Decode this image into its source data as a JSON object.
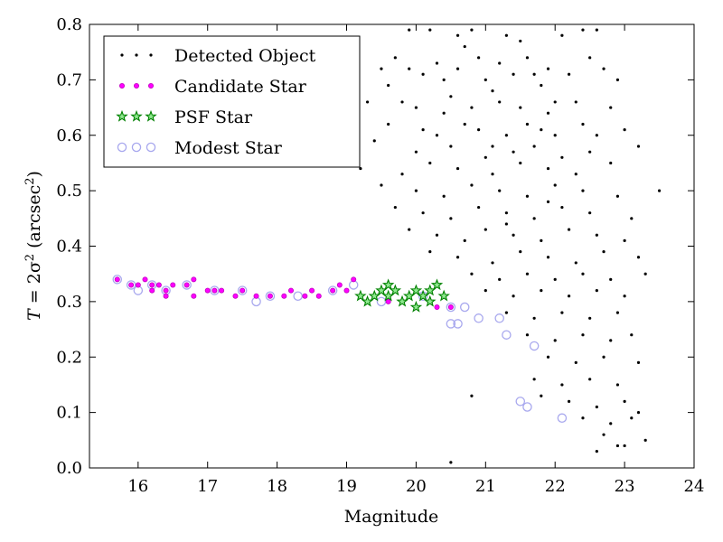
{
  "chart_data": {
    "type": "scatter",
    "xlabel": "Magnitude",
    "ylabel_parts": {
      "prefix": "T",
      "eq": " = 2σ",
      "sup": "2",
      "paren_open": " (arcsec",
      "sup2": "2",
      "paren_close": ")"
    },
    "xlim": [
      15.3,
      24.0
    ],
    "ylim": [
      0.0,
      0.8
    ],
    "xticks": [
      "16",
      "17",
      "18",
      "19",
      "20",
      "21",
      "22",
      "23",
      "24"
    ],
    "yticks": [
      "0.0",
      "0.1",
      "0.2",
      "0.3",
      "0.4",
      "0.5",
      "0.6",
      "0.7",
      "0.8"
    ],
    "grid": false,
    "legend_position": "top-left",
    "legend": [
      {
        "label": "Detected Object",
        "marker": "dot",
        "color": "#000000"
      },
      {
        "label": "Candidate Star",
        "marker": "small-circle",
        "color": "#ff00ff"
      },
      {
        "label": "PSF Star",
        "marker": "star",
        "color": "#00a000"
      },
      {
        "label": "Modest Star",
        "marker": "open-circle",
        "color": "#b0b0f0"
      }
    ],
    "series": [
      {
        "name": "Detected Object",
        "points": [
          [
            19.9,
            0.79
          ],
          [
            20.2,
            0.79
          ],
          [
            20.6,
            0.78
          ],
          [
            20.7,
            0.76
          ],
          [
            20.8,
            0.79
          ],
          [
            21.3,
            0.78
          ],
          [
            21.5,
            0.77
          ],
          [
            22.1,
            0.78
          ],
          [
            22.4,
            0.79
          ],
          [
            22.6,
            0.79
          ],
          [
            19.5,
            0.72
          ],
          [
            19.7,
            0.74
          ],
          [
            19.9,
            0.72
          ],
          [
            20.1,
            0.71
          ],
          [
            20.3,
            0.73
          ],
          [
            20.6,
            0.72
          ],
          [
            20.9,
            0.74
          ],
          [
            21.0,
            0.7
          ],
          [
            21.2,
            0.73
          ],
          [
            21.4,
            0.71
          ],
          [
            21.6,
            0.74
          ],
          [
            21.7,
            0.71
          ],
          [
            21.9,
            0.72
          ],
          [
            22.2,
            0.71
          ],
          [
            22.5,
            0.74
          ],
          [
            22.7,
            0.72
          ],
          [
            22.9,
            0.7
          ],
          [
            21.8,
            0.69
          ],
          [
            21.1,
            0.68
          ],
          [
            20.5,
            0.67
          ],
          [
            19.3,
            0.66
          ],
          [
            19.8,
            0.66
          ],
          [
            20.0,
            0.65
          ],
          [
            20.4,
            0.64
          ],
          [
            20.8,
            0.65
          ],
          [
            21.2,
            0.66
          ],
          [
            21.5,
            0.65
          ],
          [
            21.9,
            0.64
          ],
          [
            22.3,
            0.66
          ],
          [
            22.8,
            0.65
          ],
          [
            19.6,
            0.62
          ],
          [
            20.1,
            0.61
          ],
          [
            20.3,
            0.6
          ],
          [
            20.7,
            0.62
          ],
          [
            20.9,
            0.61
          ],
          [
            21.3,
            0.6
          ],
          [
            21.6,
            0.62
          ],
          [
            21.8,
            0.61
          ],
          [
            22.0,
            0.6
          ],
          [
            22.4,
            0.62
          ],
          [
            22.6,
            0.6
          ],
          [
            23.0,
            0.61
          ],
          [
            19.0,
            0.58
          ],
          [
            19.4,
            0.59
          ],
          [
            20.0,
            0.57
          ],
          [
            20.5,
            0.58
          ],
          [
            21.0,
            0.56
          ],
          [
            21.4,
            0.57
          ],
          [
            21.7,
            0.58
          ],
          [
            22.1,
            0.56
          ],
          [
            22.5,
            0.57
          ],
          [
            23.2,
            0.58
          ],
          [
            18.5,
            0.55
          ],
          [
            19.2,
            0.54
          ],
          [
            19.8,
            0.53
          ],
          [
            20.2,
            0.55
          ],
          [
            20.6,
            0.54
          ],
          [
            21.1,
            0.53
          ],
          [
            21.5,
            0.55
          ],
          [
            21.9,
            0.54
          ],
          [
            22.3,
            0.53
          ],
          [
            22.8,
            0.55
          ],
          [
            19.5,
            0.51
          ],
          [
            20.0,
            0.5
          ],
          [
            20.4,
            0.49
          ],
          [
            20.8,
            0.51
          ],
          [
            21.2,
            0.5
          ],
          [
            21.6,
            0.49
          ],
          [
            22.0,
            0.51
          ],
          [
            22.4,
            0.5
          ],
          [
            22.9,
            0.49
          ],
          [
            23.5,
            0.5
          ],
          [
            19.7,
            0.47
          ],
          [
            20.1,
            0.46
          ],
          [
            20.5,
            0.45
          ],
          [
            20.9,
            0.47
          ],
          [
            21.3,
            0.46
          ],
          [
            21.7,
            0.45
          ],
          [
            22.1,
            0.47
          ],
          [
            22.5,
            0.46
          ],
          [
            23.1,
            0.45
          ],
          [
            19.9,
            0.43
          ],
          [
            20.3,
            0.42
          ],
          [
            20.7,
            0.41
          ],
          [
            21.0,
            0.43
          ],
          [
            21.4,
            0.42
          ],
          [
            21.8,
            0.41
          ],
          [
            22.2,
            0.43
          ],
          [
            22.6,
            0.42
          ],
          [
            23.0,
            0.41
          ],
          [
            20.2,
            0.39
          ],
          [
            20.6,
            0.38
          ],
          [
            21.1,
            0.37
          ],
          [
            21.5,
            0.39
          ],
          [
            21.9,
            0.38
          ],
          [
            22.3,
            0.37
          ],
          [
            22.7,
            0.39
          ],
          [
            23.2,
            0.38
          ],
          [
            20.8,
            0.35
          ],
          [
            21.2,
            0.34
          ],
          [
            21.6,
            0.35
          ],
          [
            22.0,
            0.34
          ],
          [
            22.4,
            0.35
          ],
          [
            22.8,
            0.34
          ],
          [
            23.3,
            0.35
          ],
          [
            21.0,
            0.32
          ],
          [
            21.4,
            0.31
          ],
          [
            21.8,
            0.32
          ],
          [
            22.2,
            0.31
          ],
          [
            22.6,
            0.32
          ],
          [
            23.0,
            0.31
          ],
          [
            21.3,
            0.28
          ],
          [
            21.7,
            0.27
          ],
          [
            22.1,
            0.28
          ],
          [
            22.5,
            0.27
          ],
          [
            22.9,
            0.28
          ],
          [
            21.6,
            0.24
          ],
          [
            22.0,
            0.23
          ],
          [
            22.4,
            0.24
          ],
          [
            22.8,
            0.23
          ],
          [
            23.1,
            0.24
          ],
          [
            21.9,
            0.2
          ],
          [
            22.3,
            0.19
          ],
          [
            22.7,
            0.2
          ],
          [
            23.2,
            0.19
          ],
          [
            21.7,
            0.16
          ],
          [
            22.1,
            0.15
          ],
          [
            22.5,
            0.16
          ],
          [
            22.9,
            0.15
          ],
          [
            21.8,
            0.13
          ],
          [
            22.2,
            0.12
          ],
          [
            22.6,
            0.11
          ],
          [
            23.0,
            0.12
          ],
          [
            22.4,
            0.09
          ],
          [
            22.8,
            0.08
          ],
          [
            23.1,
            0.09
          ],
          [
            22.7,
            0.06
          ],
          [
            23.3,
            0.05
          ],
          [
            22.9,
            0.04
          ],
          [
            22.6,
            0.03
          ],
          [
            20.5,
            0.01
          ],
          [
            20.8,
            0.13
          ],
          [
            23.0,
            0.04
          ],
          [
            23.2,
            0.1
          ],
          [
            21.1,
            0.58
          ],
          [
            22.0,
            0.66
          ],
          [
            20.4,
            0.7
          ],
          [
            19.6,
            0.69
          ],
          [
            21.9,
            0.48
          ],
          [
            21.3,
            0.44
          ]
        ]
      },
      {
        "name": "Candidate Star",
        "points": [
          [
            15.7,
            0.34
          ],
          [
            15.9,
            0.33
          ],
          [
            16.0,
            0.33
          ],
          [
            16.1,
            0.34
          ],
          [
            16.2,
            0.32
          ],
          [
            16.3,
            0.33
          ],
          [
            16.4,
            0.32
          ],
          [
            16.5,
            0.33
          ],
          [
            16.2,
            0.33
          ],
          [
            16.4,
            0.31
          ],
          [
            16.7,
            0.33
          ],
          [
            16.8,
            0.34
          ],
          [
            17.0,
            0.32
          ],
          [
            17.1,
            0.32
          ],
          [
            17.2,
            0.32
          ],
          [
            17.4,
            0.31
          ],
          [
            17.5,
            0.32
          ],
          [
            17.7,
            0.31
          ],
          [
            17.9,
            0.31
          ],
          [
            18.1,
            0.31
          ],
          [
            18.2,
            0.32
          ],
          [
            18.4,
            0.31
          ],
          [
            18.6,
            0.31
          ],
          [
            18.8,
            0.32
          ],
          [
            19.0,
            0.32
          ],
          [
            19.1,
            0.34
          ],
          [
            19.2,
            0.31
          ],
          [
            19.4,
            0.31
          ],
          [
            19.6,
            0.3
          ],
          [
            20.3,
            0.29
          ],
          [
            20.5,
            0.29
          ],
          [
            16.8,
            0.31
          ],
          [
            18.5,
            0.32
          ],
          [
            18.9,
            0.33
          ],
          [
            19.5,
            0.32
          ]
        ]
      },
      {
        "name": "PSF Star",
        "points": [
          [
            19.3,
            0.3
          ],
          [
            19.4,
            0.31
          ],
          [
            19.5,
            0.32
          ],
          [
            19.6,
            0.33
          ],
          [
            19.7,
            0.32
          ],
          [
            19.8,
            0.3
          ],
          [
            19.9,
            0.31
          ],
          [
            20.0,
            0.32
          ],
          [
            20.1,
            0.31
          ],
          [
            20.2,
            0.3
          ],
          [
            20.3,
            0.33
          ],
          [
            20.4,
            0.31
          ],
          [
            19.2,
            0.31
          ],
          [
            20.0,
            0.29
          ],
          [
            19.6,
            0.31
          ],
          [
            20.2,
            0.32
          ]
        ]
      },
      {
        "name": "Modest Star",
        "points": [
          [
            15.7,
            0.34
          ],
          [
            15.9,
            0.33
          ],
          [
            16.0,
            0.32
          ],
          [
            16.2,
            0.33
          ],
          [
            16.4,
            0.32
          ],
          [
            16.7,
            0.33
          ],
          [
            17.1,
            0.32
          ],
          [
            17.5,
            0.32
          ],
          [
            17.9,
            0.31
          ],
          [
            18.3,
            0.31
          ],
          [
            18.8,
            0.32
          ],
          [
            19.1,
            0.33
          ],
          [
            19.5,
            0.3
          ],
          [
            20.1,
            0.31
          ],
          [
            20.5,
            0.29
          ],
          [
            20.5,
            0.26
          ],
          [
            20.6,
            0.26
          ],
          [
            20.9,
            0.27
          ],
          [
            21.3,
            0.24
          ],
          [
            21.5,
            0.12
          ],
          [
            21.6,
            0.11
          ],
          [
            21.7,
            0.22
          ],
          [
            22.1,
            0.09
          ],
          [
            20.7,
            0.29
          ],
          [
            21.2,
            0.27
          ],
          [
            17.7,
            0.3
          ]
        ]
      }
    ]
  }
}
